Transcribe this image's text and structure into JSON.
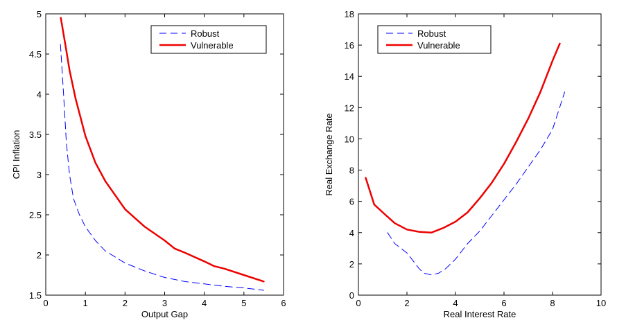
{
  "chart_data": [
    {
      "type": "line",
      "xlabel": "Output Gap",
      "ylabel": "CPI Inflation",
      "xlim": [
        0,
        6
      ],
      "ylim": [
        1.5,
        5
      ],
      "xticks": [
        0,
        1,
        2,
        3,
        4,
        5,
        6
      ],
      "yticks": [
        1.5,
        2,
        2.5,
        3,
        3.5,
        4,
        4.5,
        5
      ],
      "xtick_labels": [
        "0",
        "1",
        "2",
        "3",
        "4",
        "5",
        "6"
      ],
      "ytick_labels": [
        "1.5",
        "2",
        "2.5",
        "3",
        "3.5",
        "4",
        "4.5",
        "5"
      ],
      "grid": false,
      "legend_position": "top-right",
      "series": [
        {
          "name": "Robust",
          "color": "#0000ff",
          "style": "dashed",
          "x": [
            0.37,
            0.45,
            0.52,
            0.6,
            0.7,
            0.85,
            1.0,
            1.25,
            1.5,
            2.0,
            2.5,
            3.0,
            3.5,
            4.0,
            4.5,
            5.0,
            5.5
          ],
          "y": [
            4.62,
            4.0,
            3.4,
            3.0,
            2.7,
            2.5,
            2.35,
            2.18,
            2.05,
            1.9,
            1.8,
            1.72,
            1.67,
            1.64,
            1.61,
            1.59,
            1.56
          ]
        },
        {
          "name": "Vulnerable",
          "color": "#ee0000",
          "style": "solid",
          "x": [
            0.38,
            0.5,
            0.6,
            0.75,
            1.0,
            1.25,
            1.5,
            2.0,
            2.5,
            3.0,
            3.25,
            3.5,
            4.0,
            4.25,
            4.5,
            5.0,
            5.5
          ],
          "y": [
            4.95,
            4.6,
            4.3,
            3.95,
            3.48,
            3.15,
            2.92,
            2.57,
            2.35,
            2.18,
            2.08,
            2.03,
            1.92,
            1.86,
            1.83,
            1.75,
            1.67
          ]
        }
      ]
    },
    {
      "type": "line",
      "xlabel": "Real Interest Rate",
      "ylabel": "Real Exchange Rate",
      "xlim": [
        0,
        10
      ],
      "ylim": [
        0,
        18
      ],
      "xticks": [
        0,
        2,
        4,
        6,
        8,
        10
      ],
      "yticks": [
        0,
        2,
        4,
        6,
        8,
        10,
        12,
        14,
        16,
        18
      ],
      "xtick_labels": [
        "0",
        "2",
        "4",
        "6",
        "8",
        "10"
      ],
      "ytick_labels": [
        "0",
        "2",
        "4",
        "6",
        "8",
        "10",
        "12",
        "14",
        "16",
        "18"
      ],
      "grid": false,
      "legend_position": "top-left",
      "series": [
        {
          "name": "Robust",
          "color": "#0000ff",
          "style": "dashed",
          "x": [
            1.2,
            1.5,
            2.0,
            2.2,
            2.5,
            2.7,
            3.0,
            3.3,
            3.6,
            4.0,
            4.5,
            5.0,
            5.5,
            6.0,
            6.5,
            7.0,
            7.5,
            8.0,
            8.5
          ],
          "y": [
            4.0,
            3.3,
            2.7,
            2.3,
            1.7,
            1.4,
            1.3,
            1.4,
            1.7,
            2.3,
            3.3,
            4.1,
            5.1,
            6.1,
            7.1,
            8.2,
            9.3,
            10.6,
            13.0
          ]
        },
        {
          "name": "Vulnerable",
          "color": "#ee0000",
          "style": "solid",
          "x": [
            0.3,
            0.65,
            1.0,
            1.5,
            2.0,
            2.5,
            3.0,
            3.5,
            4.0,
            4.5,
            5.0,
            5.5,
            6.0,
            6.5,
            7.0,
            7.5,
            8.0,
            8.3
          ],
          "y": [
            7.5,
            5.8,
            5.3,
            4.6,
            4.2,
            4.05,
            4.0,
            4.3,
            4.7,
            5.3,
            6.2,
            7.2,
            8.4,
            9.8,
            11.3,
            13.0,
            15.0,
            16.1
          ]
        }
      ]
    }
  ]
}
